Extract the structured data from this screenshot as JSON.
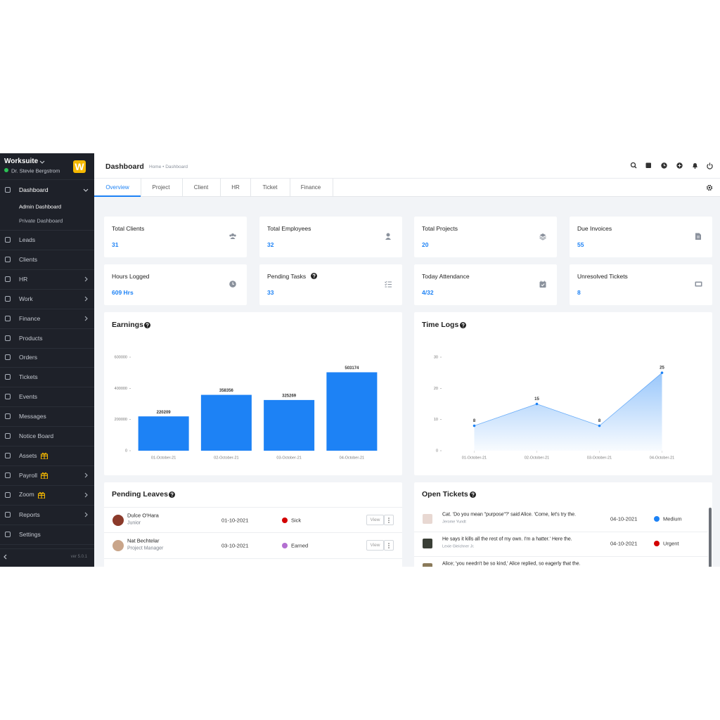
{
  "sidebar": {
    "brand": "Worksuite",
    "user": "Dr. Stevie Bergstrom",
    "logo": "W",
    "items": [
      "Dashboard",
      "Leads",
      "Clients",
      "HR",
      "Work",
      "Finance",
      "Products",
      "Orders",
      "Tickets",
      "Events",
      "Messages",
      "Notice Board",
      "Assets",
      "Payroll",
      "Zoom",
      "Reports",
      "Settings"
    ],
    "submenu": [
      "Admin Dashboard",
      "Private Dashboard"
    ],
    "version": "ver 5.0.1"
  },
  "header": {
    "title": "Dashboard",
    "breadcrumb": "Home • Dashboard"
  },
  "tabs": [
    "Overview",
    "Project",
    "Client",
    "HR",
    "Ticket",
    "Finance"
  ],
  "stats": [
    {
      "label": "Total Clients",
      "value": 31
    },
    {
      "label": "Total Employees",
      "value": 32
    },
    {
      "label": "Total Projects",
      "value": 20
    },
    {
      "label": "Due Invoices",
      "value": 55
    },
    {
      "label": "Hours Logged",
      "value": "609 Hrs"
    },
    {
      "label": "Pending Tasks",
      "value": 33
    },
    {
      "label": "Today Attendance",
      "value": "4/32"
    },
    {
      "label": "Unresolved Tickets",
      "value": 8
    }
  ],
  "chart_data": [
    {
      "type": "bar",
      "title": "Earnings",
      "categories": [
        "01-October-21",
        "02-October-21",
        "03-October-21",
        "04-October-21"
      ],
      "values": [
        220209,
        358356,
        325269,
        503174
      ],
      "color": "#1d82f5",
      "ylim": [
        0,
        600000
      ],
      "yticks": [
        0,
        200000,
        400000,
        600000
      ]
    },
    {
      "type": "line",
      "title": "Time Logs",
      "categories": [
        "01-October-21",
        "02-October-21",
        "03-October-21",
        "04-October-21"
      ],
      "values": [
        8,
        15,
        8,
        25
      ],
      "color": "#1d82f5",
      "ylim": [
        0,
        30
      ],
      "yticks": [
        0,
        10,
        20,
        30
      ]
    }
  ],
  "leaves": {
    "title": "Pending Leaves",
    "action": "View",
    "rows": [
      {
        "name": "Dulce O'Hara",
        "role": "Junior",
        "date": "01-10-2021",
        "type": "Sick",
        "color": "#d30000"
      },
      {
        "name": "Nat Bechtelar",
        "role": "Project Manager",
        "date": "03-10-2021",
        "type": "Earned",
        "color": "#b36fd1"
      }
    ]
  },
  "tickets": {
    "title": "Open Tickets",
    "rows": [
      {
        "subject": "Cat. 'Do you mean \"purpose\"?' said Alice. 'Come, let's try the.",
        "requester": "Jerome Yundt",
        "date": "04-10-2021",
        "priority": "Medium",
        "color": "#1d82f5"
      },
      {
        "subject": "He says it kills all the rest of my own. I'm a hatter.' Here the.",
        "requester": "Lexie Gleichner Jr.",
        "date": "04-10-2021",
        "priority": "Urgent",
        "color": "#d30000"
      },
      {
        "subject": "Alice; 'you needn't be so kind,' Alice replied, so eagerly that the."
      }
    ]
  }
}
